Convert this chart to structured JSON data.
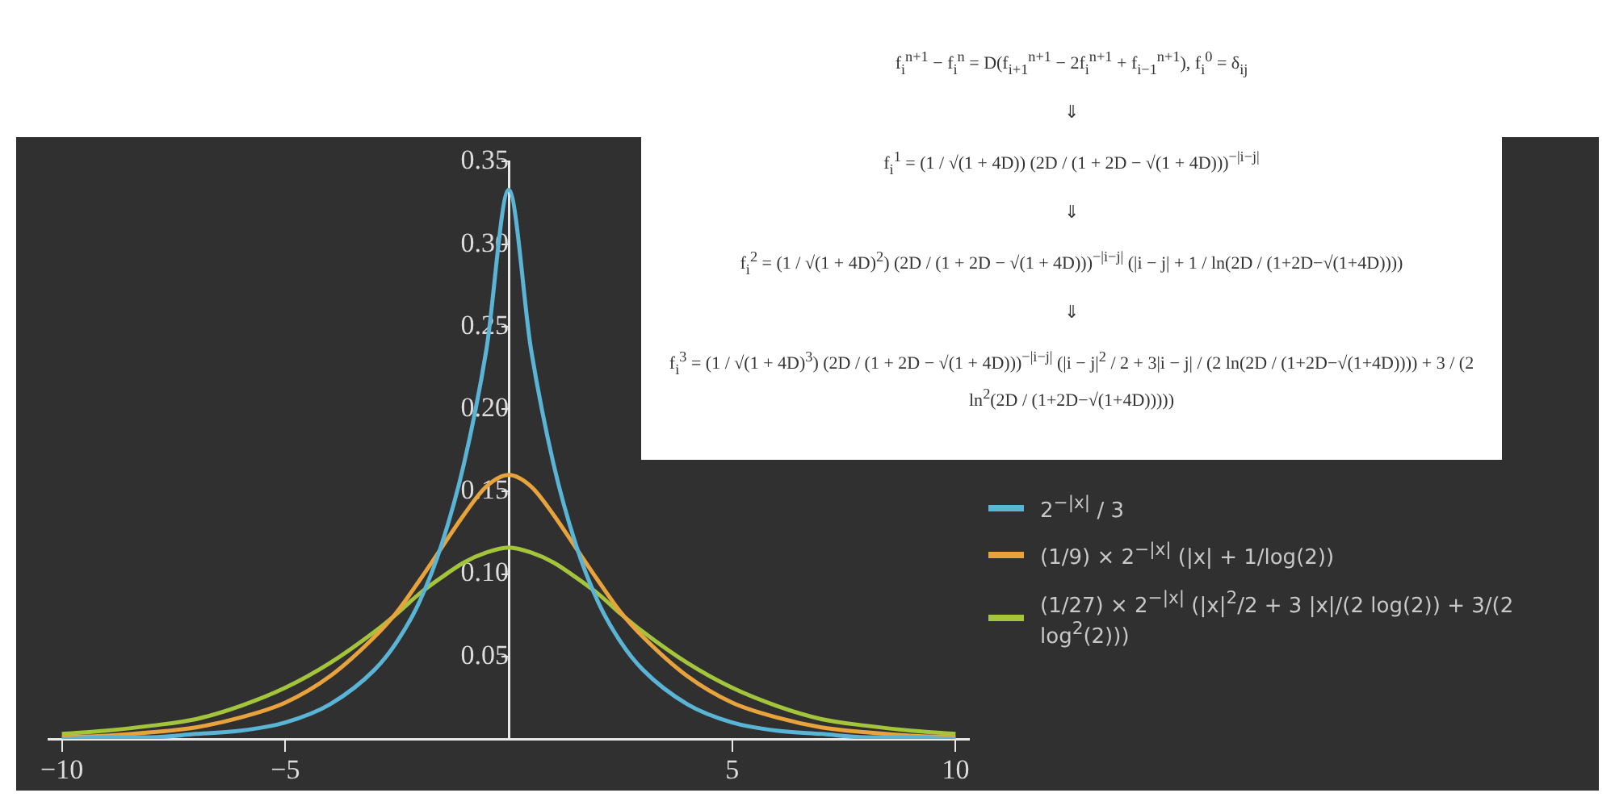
{
  "chart_data": [
    {
      "type": "line",
      "x": [
        -10,
        -9,
        -8,
        -7,
        -6,
        -5,
        -4,
        -3,
        -2.5,
        -2,
        -1.5,
        -1,
        -0.5,
        0,
        0.5,
        1,
        1.5,
        2,
        2.5,
        3,
        4,
        5,
        6,
        7,
        8,
        9,
        10
      ],
      "series": [
        {
          "name": "2$^{−|x|}$ / 3",
          "color": "#5ab4d6",
          "values": [
            0.0,
            0.001,
            0.001,
            0.003,
            0.005,
            0.01,
            0.021,
            0.042,
            0.059,
            0.083,
            0.118,
            0.167,
            0.236,
            0.333,
            0.236,
            0.167,
            0.118,
            0.083,
            0.059,
            0.042,
            0.021,
            0.01,
            0.005,
            0.003,
            0.001,
            0.001,
            0.0
          ]
        },
        {
          "name": "(1/9) × 2$^{−|x|}$ (|x| + 1/log(2))",
          "color": "#e8a33c",
          "values": [
            0.001,
            0.002,
            0.004,
            0.007,
            0.013,
            0.022,
            0.038,
            0.062,
            0.077,
            0.096,
            0.116,
            0.136,
            0.153,
            0.16,
            0.153,
            0.136,
            0.116,
            0.096,
            0.077,
            0.062,
            0.038,
            0.022,
            0.013,
            0.007,
            0.004,
            0.002,
            0.001
          ]
        },
        {
          "name": "(1/27) × 2$^{−|x|}$ (|x|$^{2}$/2 + 3 |x|/(2 log(2)) + 3/(2 log$^{2}$(2)))",
          "color": "#a4c43c",
          "values": [
            0.003,
            0.005,
            0.008,
            0.012,
            0.02,
            0.031,
            0.046,
            0.065,
            0.076,
            0.088,
            0.098,
            0.107,
            0.113,
            0.116,
            0.113,
            0.107,
            0.098,
            0.088,
            0.076,
            0.065,
            0.046,
            0.031,
            0.02,
            0.012,
            0.008,
            0.005,
            0.003
          ]
        }
      ],
      "xlim": [
        -10.3,
        10.3
      ],
      "xticks": [
        -10,
        -5,
        5,
        10
      ],
      "ylim": [
        0,
        0.35
      ],
      "yticks": [
        0.05,
        {
          "value": 0.1,
          "label": "0.10"
        },
        0.15,
        {
          "value": 0.2,
          "label": "0.20"
        },
        0.25,
        {
          "value": 0.3,
          "label": "0.30"
        },
        0.35
      ],
      "legend": "right",
      "grid": false,
      "marker": "none",
      "line_style": "solid"
    },
    {
      "type": "other",
      "annotations": [
        "f$_{i}$$^{n+1}$ − f$_{i}$$^{n}$ = D(f$_{i+1}$$^{n+1}$ − 2f$_{i}$$^{n+1}$ + f$_{i−1}$$^{n+1}$),   f$_{i}$$^{0}$ = δ$_{ij}$",
        "⇓",
        "f$_{i}$$^{1}$ = (1 / √(1 + 4D)) (2D / (1 + 2D − √(1 + 4D)))$^{−|i−j|}$",
        "⇓",
        "f$_{i}$$^{2}$ = (1 / √(1 + 4D)$^{2}$) (2D / (1 + 2D − √(1 + 4D)))$^{−|i−j|}$ (|i − j| + 1 / ln(2D / (1+2D−√(1+4D))))",
        "⇓",
        "f$_{i}$$^{3}$ = (1 / √(1 + 4D)$^{3}$) (2D / (1 + 2D − √(1 + 4D)))$^{−|i−j|}$ (|i − j|$^{2}$ / 2 + 3|i − j| / (2 ln(2D / (1+2D−√(1+4D)))) + 3 / (2 ln$^{2}$(2D / (1+2D−√(1+4D)))))"
      ]
    }
  ]
}
